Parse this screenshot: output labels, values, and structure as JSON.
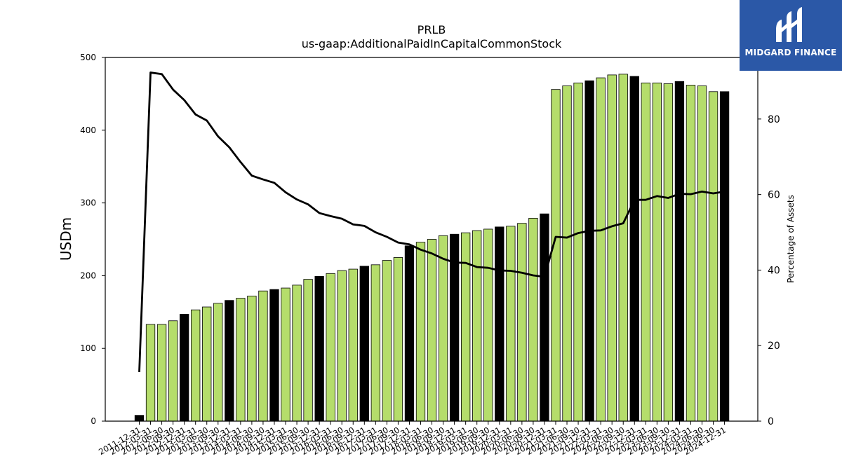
{
  "logo": {
    "text": "MIDGARD FINANCE"
  },
  "chart_data": {
    "type": "bar",
    "title": "PRLB",
    "subtitle": "us-gaap:AdditionalPaidInCapitalCommonStock",
    "ylabel": "USDm",
    "y2label": "Percentage of Assets",
    "ylim": [
      0,
      500
    ],
    "y2lim": [
      0,
      96.3
    ],
    "yticks": [
      0,
      100,
      200,
      300,
      400,
      500
    ],
    "y2ticks": [
      0,
      20,
      40,
      60,
      80
    ],
    "colors": {
      "bar": "#b5dd6b",
      "bar_q4": "#000000",
      "line": "#000000"
    },
    "categories": [
      "2011-12-31",
      "2012-03-31",
      "2012-06-30",
      "2012-09-30",
      "2012-12-31",
      "2013-03-31",
      "2013-06-30",
      "2013-09-30",
      "2013-12-31",
      "2014-03-31",
      "2014-06-30",
      "2014-09-30",
      "2014-12-31",
      "2015-03-31",
      "2015-06-30",
      "2015-09-30",
      "2015-12-31",
      "2016-03-31",
      "2016-06-30",
      "2016-09-30",
      "2016-12-31",
      "2017-03-31",
      "2017-06-30",
      "2017-09-30",
      "2017-12-31",
      "2018-03-31",
      "2018-06-30",
      "2018-09-30",
      "2018-12-31",
      "2019-03-31",
      "2019-06-30",
      "2019-09-30",
      "2019-12-31",
      "2020-03-31",
      "2020-06-30",
      "2020-09-30",
      "2020-12-31",
      "2021-03-31",
      "2021-06-30",
      "2021-09-30",
      "2021-12-31",
      "2022-03-31",
      "2022-06-30",
      "2022-09-30",
      "2022-12-31",
      "2023-03-31",
      "2023-06-30",
      "2023-09-30",
      "2023-12-31",
      "2024-03-31",
      "2024-06-30",
      "2024-09-30",
      "2024-12-31"
    ],
    "series": [
      {
        "values": [
          8,
          133,
          133,
          138,
          147,
          153,
          157,
          162,
          166,
          169,
          172,
          179,
          181,
          183,
          187,
          195,
          199,
          203,
          207,
          209,
          213,
          215,
          221,
          225,
          241,
          246,
          250,
          255,
          257,
          259,
          262,
          264,
          267,
          268,
          272,
          279,
          285,
          456,
          461,
          465,
          468,
          472,
          476,
          477,
          474,
          465,
          465,
          464,
          467,
          462,
          461,
          453,
          453
        ]
      },
      {
        "values": [
          13,
          92.3,
          91.9,
          87.8,
          85,
          81.2,
          79.6,
          75.4,
          72.5,
          68.6,
          65,
          64,
          63.1,
          60.6,
          58.7,
          57.4,
          55.1,
          54.3,
          53.6,
          52.1,
          51.7,
          50,
          48.8,
          47.3,
          46.8,
          45.4,
          44.4,
          43,
          42,
          41.9,
          40.8,
          40.6,
          39.9,
          39.8,
          39.3,
          38.6,
          38.2,
          48.8,
          48.6,
          49.8,
          50.4,
          50.5,
          51.6,
          52.4,
          58.6,
          58.6,
          59.6,
          59.1,
          60.2,
          60.1,
          60.8,
          60.3,
          60.8
        ]
      }
    ]
  }
}
